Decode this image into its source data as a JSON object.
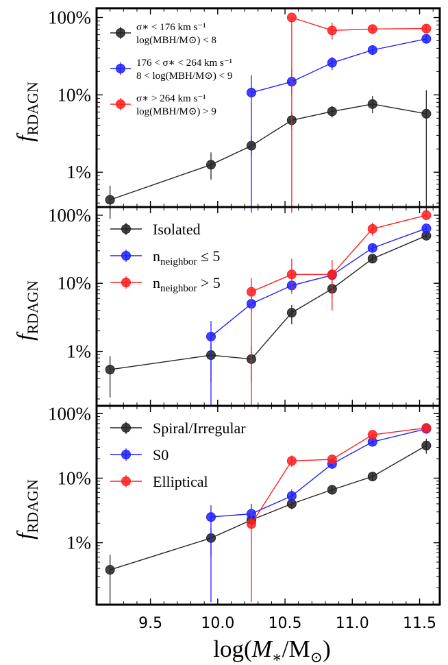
{
  "figure": {
    "xlabel_main": "log(",
    "xlabel_var": "M",
    "xlabel_sub": "∗",
    "xlabel_mid": "/M",
    "xlabel_sun": "⊙",
    "xlabel_end": ")",
    "xticks": [
      "9.5",
      "10.0",
      "10.5",
      "11.0",
      "11.5"
    ],
    "ylabel_var": "f",
    "ylabel_sub": "RDAGN",
    "colors": {
      "black": "#222222",
      "blue": "#1f1fff",
      "red": "#ff1f1f"
    }
  },
  "chart_data": [
    {
      "type": "line",
      "xlim": [
        9.1,
        11.65
      ],
      "ylim_log10": [
        -2.45,
        0.12
      ],
      "yscale": "log",
      "yticks": [
        "1%",
        "10%",
        "100%"
      ],
      "legend_placement": "top-left",
      "series": [
        {
          "name": "σ∗ < 176 km s⁻¹ | log(M_BH/M⊙) < 8",
          "legend_line1": "σ∗ < 176 km s⁻¹",
          "legend_line2": "log(MBH/M⊙) < 8",
          "color": "black",
          "points": [
            [
              9.2,
              0.0044
            ],
            [
              9.95,
              0.0125
            ],
            [
              10.25,
              0.022
            ],
            [
              10.55,
              0.047
            ],
            [
              10.85,
              0.061
            ],
            [
              11.15,
              0.076
            ],
            [
              11.55,
              0.057
            ]
          ],
          "err_low": [
            0.0025,
            0.008,
            0.016,
            0.036,
            0.051,
            0.058,
            0.003
          ],
          "err_high": [
            0.0067,
            0.018,
            0.03,
            0.06,
            0.072,
            0.097,
            0.115
          ]
        },
        {
          "name": "176 < σ∗ < 264 km s⁻¹ | 8 < log(M_BH/M⊙) < 9",
          "legend_line1": "176 < σ∗ < 264 km s⁻¹",
          "legend_line2": "8 < log(MBH/M⊙) < 9",
          "color": "blue",
          "points": [
            [
              10.25,
              0.107
            ],
            [
              10.55,
              0.148
            ],
            [
              10.85,
              0.26
            ],
            [
              11.15,
              0.38
            ],
            [
              11.55,
              0.53
            ]
          ],
          "err_low": [
            0.003,
            0.1,
            0.21,
            0.33,
            0.47
          ],
          "err_high": [
            0.18,
            0.21,
            0.31,
            0.43,
            0.6
          ]
        },
        {
          "name": "σ∗ > 264 km s⁻¹ | log(M_BH/M⊙) > 9",
          "legend_line1": "σ∗ > 264 km s⁻¹",
          "legend_line2": "log(MBH/M⊙) > 9",
          "color": "red",
          "points": [
            [
              10.55,
              1.0
            ],
            [
              10.85,
              0.68
            ],
            [
              11.15,
              0.71
            ],
            [
              11.55,
              0.72
            ]
          ],
          "err_low": [
            0.003,
            0.52,
            0.62,
            0.65
          ],
          "err_high": [
            1.0,
            0.86,
            0.8,
            0.79
          ]
        }
      ]
    },
    {
      "type": "line",
      "xlim": [
        9.1,
        11.65
      ],
      "ylim_log10": [
        -2.8,
        0.12
      ],
      "yscale": "log",
      "yticks": [
        "1%",
        "10%",
        "100%"
      ],
      "legend_placement": "top-left",
      "series": [
        {
          "name": "Isolated",
          "legend_line1": "Isolated",
          "color": "black",
          "points": [
            [
              9.2,
              0.0054
            ],
            [
              9.95,
              0.0088
            ],
            [
              10.25,
              0.0077
            ],
            [
              10.55,
              0.037
            ],
            [
              10.85,
              0.083
            ],
            [
              11.15,
              0.23
            ],
            [
              11.55,
              0.5
            ]
          ],
          "err_low": [
            0.0021,
            0.0035,
            0.0035,
            0.025,
            0.06,
            0.2,
            0.46
          ],
          "err_high": [
            0.0085,
            0.013,
            0.012,
            0.048,
            0.11,
            0.26,
            0.55
          ]
        },
        {
          "name": "n_neighbor ≤ 5",
          "legend_line1": "n",
          "legend_sub": "neighbor",
          "legend_tail": " ≤ 5",
          "color": "blue",
          "points": [
            [
              9.95,
              0.0165
            ],
            [
              10.25,
              0.05
            ],
            [
              10.55,
              0.093
            ],
            [
              10.85,
              0.132
            ],
            [
              11.15,
              0.33
            ],
            [
              11.55,
              0.64
            ]
          ],
          "err_low": [
            0.0016,
            0.038,
            0.075,
            0.11,
            0.29,
            0.6
          ],
          "err_high": [
            0.028,
            0.065,
            0.11,
            0.16,
            0.38,
            0.69
          ]
        },
        {
          "name": "n_neighbor > 5",
          "legend_line1": "n",
          "legend_sub": "neighbor",
          "legend_tail": " > 5",
          "color": "red",
          "points": [
            [
              10.25,
              0.075
            ],
            [
              10.55,
              0.135
            ],
            [
              10.85,
              0.135
            ],
            [
              11.15,
              0.63
            ],
            [
              11.55,
              1.0
            ]
          ],
          "err_low": [
            0.0016,
            0.07,
            0.04,
            0.5,
            0.92
          ],
          "err_high": [
            0.12,
            0.23,
            0.22,
            0.78,
            1.0
          ]
        }
      ]
    },
    {
      "type": "line",
      "xlim": [
        9.1,
        11.65
      ],
      "ylim_log10": [
        -2.96,
        0.12
      ],
      "yscale": "log",
      "yticks": [
        "1%",
        "10%",
        "100%"
      ],
      "legend_placement": "top-left",
      "series": [
        {
          "name": "Spiral/Irregular",
          "legend_line1": "Spiral/Irregular",
          "color": "black",
          "points": [
            [
              9.2,
              0.0038
            ],
            [
              9.95,
              0.0118
            ],
            [
              10.25,
              0.0225
            ],
            [
              10.55,
              0.04
            ],
            [
              10.85,
              0.066
            ],
            [
              11.15,
              0.106
            ],
            [
              11.55,
              0.32
            ]
          ],
          "err_low": [
            0.0012,
            0.0062,
            0.0165,
            0.033,
            0.057,
            0.091,
            0.24
          ],
          "err_high": [
            0.0065,
            0.017,
            0.028,
            0.048,
            0.076,
            0.122,
            0.41
          ]
        },
        {
          "name": "S0",
          "legend_line1": "S0",
          "color": "blue",
          "points": [
            [
              9.95,
              0.025
            ],
            [
              10.25,
              0.028
            ],
            [
              10.55,
              0.053
            ],
            [
              10.85,
              0.166
            ],
            [
              11.15,
              0.365
            ],
            [
              11.55,
              0.58
            ]
          ],
          "err_low": [
            0.0012,
            0.016,
            0.04,
            0.14,
            0.32,
            0.53
          ],
          "err_high": [
            0.038,
            0.04,
            0.067,
            0.195,
            0.41,
            0.63
          ]
        },
        {
          "name": "Elliptical",
          "legend_line1": "Elliptical",
          "color": "red",
          "points": [
            [
              10.25,
              0.0195
            ],
            [
              10.55,
              0.185
            ],
            [
              10.85,
              0.195
            ],
            [
              11.15,
              0.47
            ],
            [
              11.55,
              0.6
            ]
          ],
          "err_low": [
            0.0012,
            0.15,
            0.17,
            0.42,
            0.55
          ],
          "err_high": [
            0.032,
            0.225,
            0.225,
            0.52,
            0.65
          ]
        }
      ]
    }
  ]
}
